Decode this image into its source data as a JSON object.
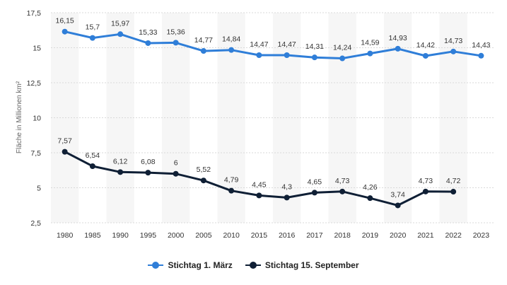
{
  "chart_data": {
    "type": "line",
    "categories": [
      "1980",
      "1985",
      "1990",
      "1995",
      "2000",
      "2005",
      "2010",
      "2015",
      "2016",
      "2017",
      "2018",
      "2019",
      "2020",
      "2021",
      "2022",
      "2023"
    ],
    "series": [
      {
        "name": "Stichtag 1. März",
        "color": "#2f7ed8",
        "values": [
          16.15,
          15.7,
          15.97,
          15.33,
          15.36,
          14.77,
          14.84,
          14.47,
          14.47,
          14.31,
          14.24,
          14.59,
          14.93,
          14.42,
          14.73,
          14.43
        ],
        "labels": [
          "16,15",
          "15,7",
          "15,97",
          "15,33",
          "15,36",
          "14,77",
          "14,84",
          "14,47",
          "14,47",
          "14,31",
          "14,24",
          "14,59",
          "14,93",
          "14,42",
          "14,73",
          "14,43"
        ]
      },
      {
        "name": "Stichtag 15. September",
        "color": "#0f1f35",
        "values": [
          7.57,
          6.54,
          6.12,
          6.08,
          6,
          5.52,
          4.79,
          4.45,
          4.3,
          4.65,
          4.73,
          4.26,
          3.74,
          4.73,
          4.72,
          null
        ],
        "labels": [
          "7,57",
          "6,54",
          "6,12",
          "6,08",
          "6",
          "5,52",
          "4,79",
          "4,45",
          "4,3",
          "4,65",
          "4,73",
          "4,26",
          "3,74",
          "4,73",
          "4,72",
          ""
        ]
      }
    ],
    "ylabel": "Fläche in Millionen km²",
    "ylim": [
      2.5,
      17.5
    ],
    "yticks": [
      2.5,
      5,
      7.5,
      10,
      12.5,
      15,
      17.5
    ],
    "ytick_labels": [
      "2,5",
      "5",
      "7,5",
      "10",
      "12,5",
      "15",
      "17,5"
    ],
    "grid": true,
    "legend_position": "bottom"
  }
}
